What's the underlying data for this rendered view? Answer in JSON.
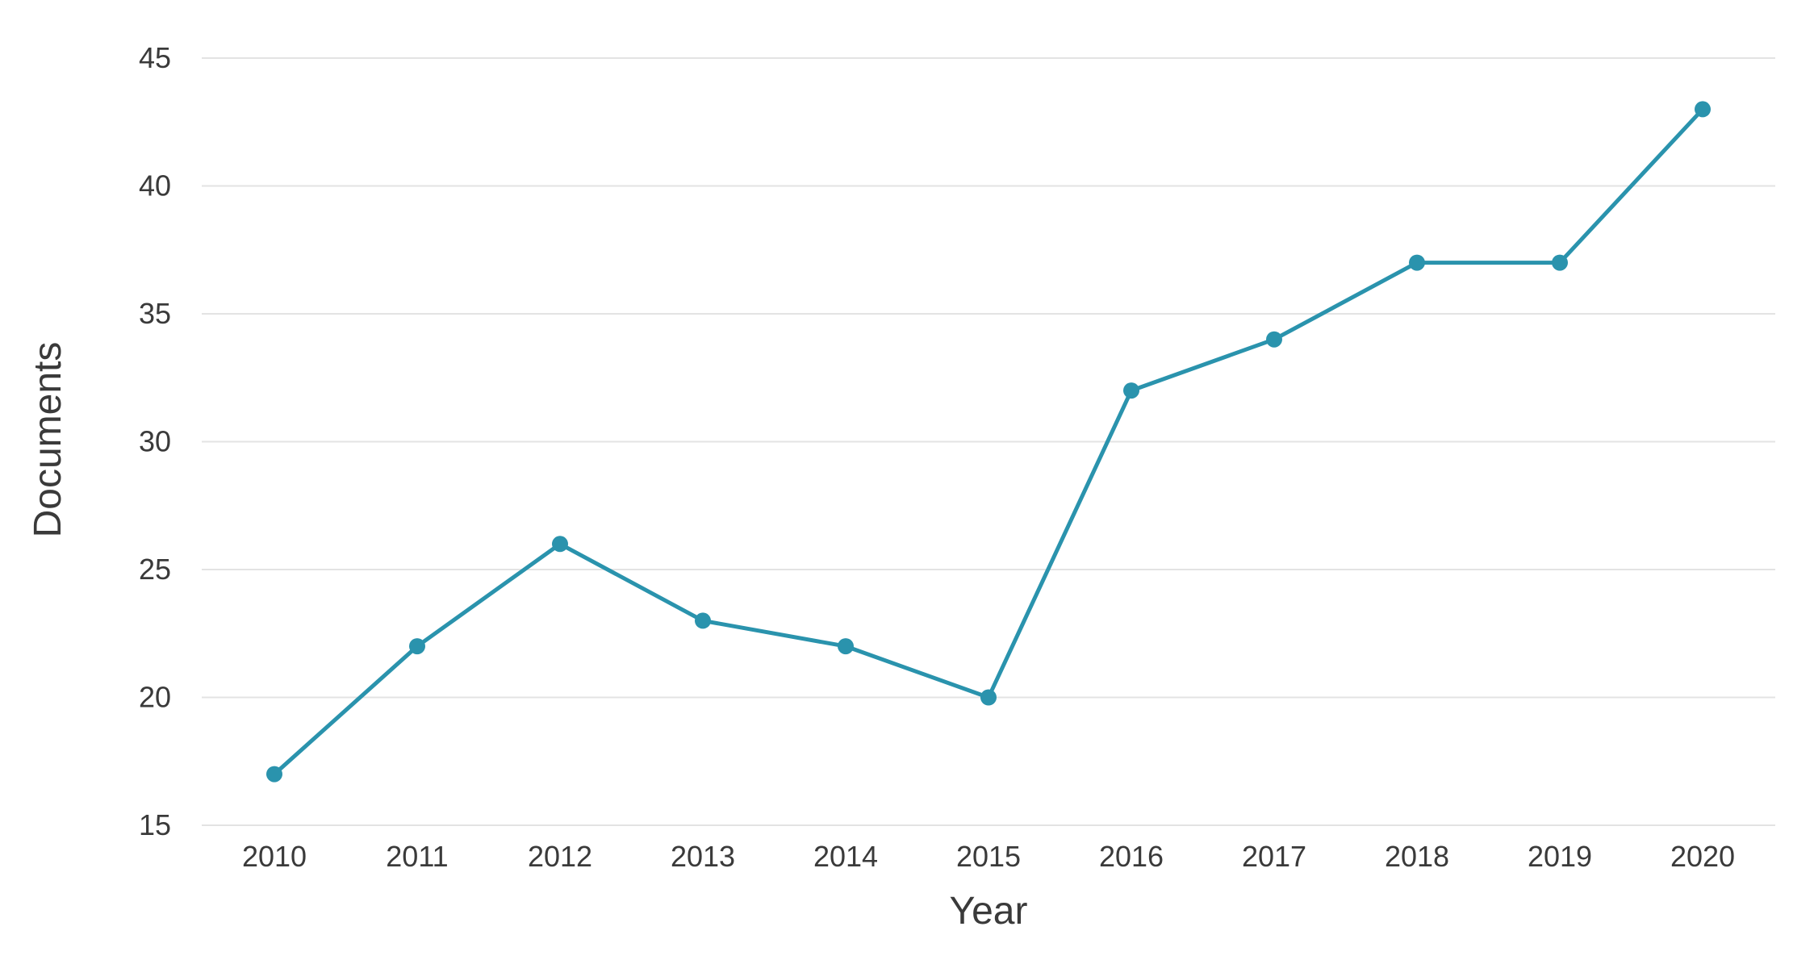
{
  "chart_data": {
    "type": "line",
    "title": "",
    "xlabel": "Year",
    "ylabel": "Documents",
    "x": [
      "2010",
      "2011",
      "2012",
      "2013",
      "2014",
      "2015",
      "2016",
      "2017",
      "2018",
      "2019",
      "2020"
    ],
    "series": [
      {
        "values": [
          17,
          22,
          26,
          23,
          22,
          20,
          32,
          34,
          37,
          37,
          43
        ]
      }
    ],
    "ylim": [
      15,
      45
    ],
    "yticks": [
      15,
      20,
      25,
      30,
      35,
      40,
      45
    ],
    "grid": "horizontal",
    "legend": "none",
    "colors": {
      "line": "#2a93ad",
      "grid": "#e3e3e3",
      "text": "#3a3a3a"
    }
  }
}
